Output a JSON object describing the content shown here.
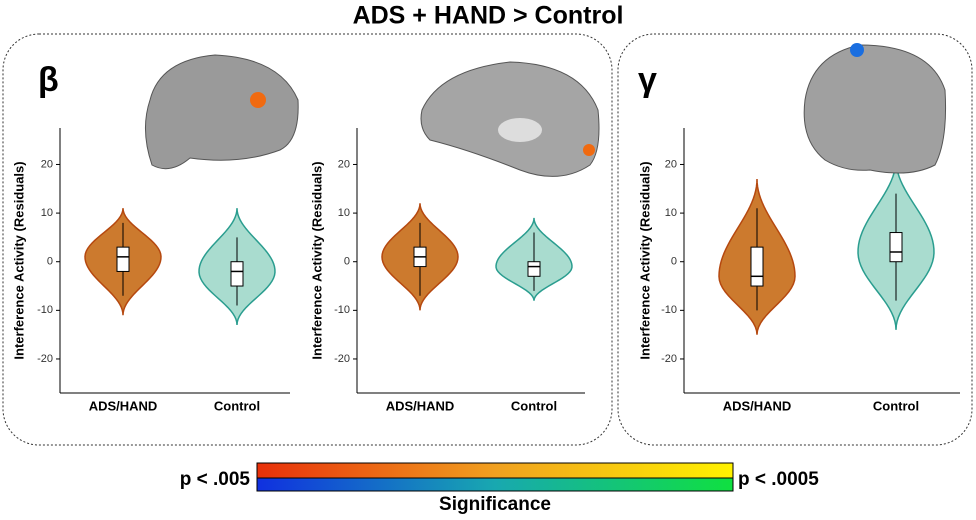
{
  "title": "ADS + HAND > Control",
  "panels": [
    {
      "label": "β"
    },
    {
      "label": "γ"
    }
  ],
  "chart_data": [
    {
      "type": "violin",
      "y_label": "Interference Activity (Residuals)",
      "categories": [
        "ADS/HAND",
        "Control"
      ],
      "violins": [
        {
          "color": "#cc7a2e",
          "edge": "#b5480f",
          "extent": [
            -11,
            11
          ],
          "box": {
            "low": -7,
            "q1": -2,
            "median": 1,
            "q3": 3,
            "high": 8
          }
        },
        {
          "color": "#a9dccf",
          "edge": "#2a9d8f",
          "extent": [
            -13,
            11
          ],
          "box": {
            "low": -9,
            "q1": -5,
            "median": -2,
            "q3": 0,
            "high": 5
          }
        }
      ],
      "ylim": [
        -27,
        27.5
      ],
      "yticks": [
        -20,
        -10,
        0,
        10,
        20
      ]
    },
    {
      "type": "violin",
      "y_label": "Interference Activity (Residuals)",
      "categories": [
        "ADS/HAND",
        "Control"
      ],
      "violins": [
        {
          "color": "#cc7a2e",
          "edge": "#b5480f",
          "extent": [
            -10,
            12
          ],
          "box": {
            "low": -7,
            "q1": -1,
            "median": 1,
            "q3": 3,
            "high": 8
          }
        },
        {
          "color": "#a9dccf",
          "edge": "#2a9d8f",
          "extent": [
            -8,
            9
          ],
          "box": {
            "low": -6,
            "q1": -3,
            "median": -1,
            "q3": 0,
            "high": 6
          }
        }
      ],
      "ylim": [
        -27,
        27.5
      ],
      "yticks": [
        -20,
        -10,
        0,
        10,
        20
      ]
    },
    {
      "type": "violin",
      "y_label": "Interference Activity (Residuals)",
      "categories": [
        "ADS/HAND",
        "Control"
      ],
      "violins": [
        {
          "color": "#cc7a2e",
          "edge": "#b5480f",
          "extent": [
            -15,
            17
          ],
          "box": {
            "low": -10,
            "q1": -5,
            "median": -3,
            "q3": 3,
            "high": 11
          }
        },
        {
          "color": "#a9dccf",
          "edge": "#2a9d8f",
          "extent": [
            -14,
            21
          ],
          "box": {
            "low": -8,
            "q1": 0,
            "median": 2,
            "q3": 6,
            "high": 14
          }
        }
      ],
      "ylim": [
        -27,
        27.5
      ],
      "yticks": [
        -20,
        -10,
        0,
        10,
        20
      ]
    }
  ],
  "colorbar": {
    "low_label": "p < .005",
    "high_label": "p < .0005",
    "title": "Significance"
  }
}
